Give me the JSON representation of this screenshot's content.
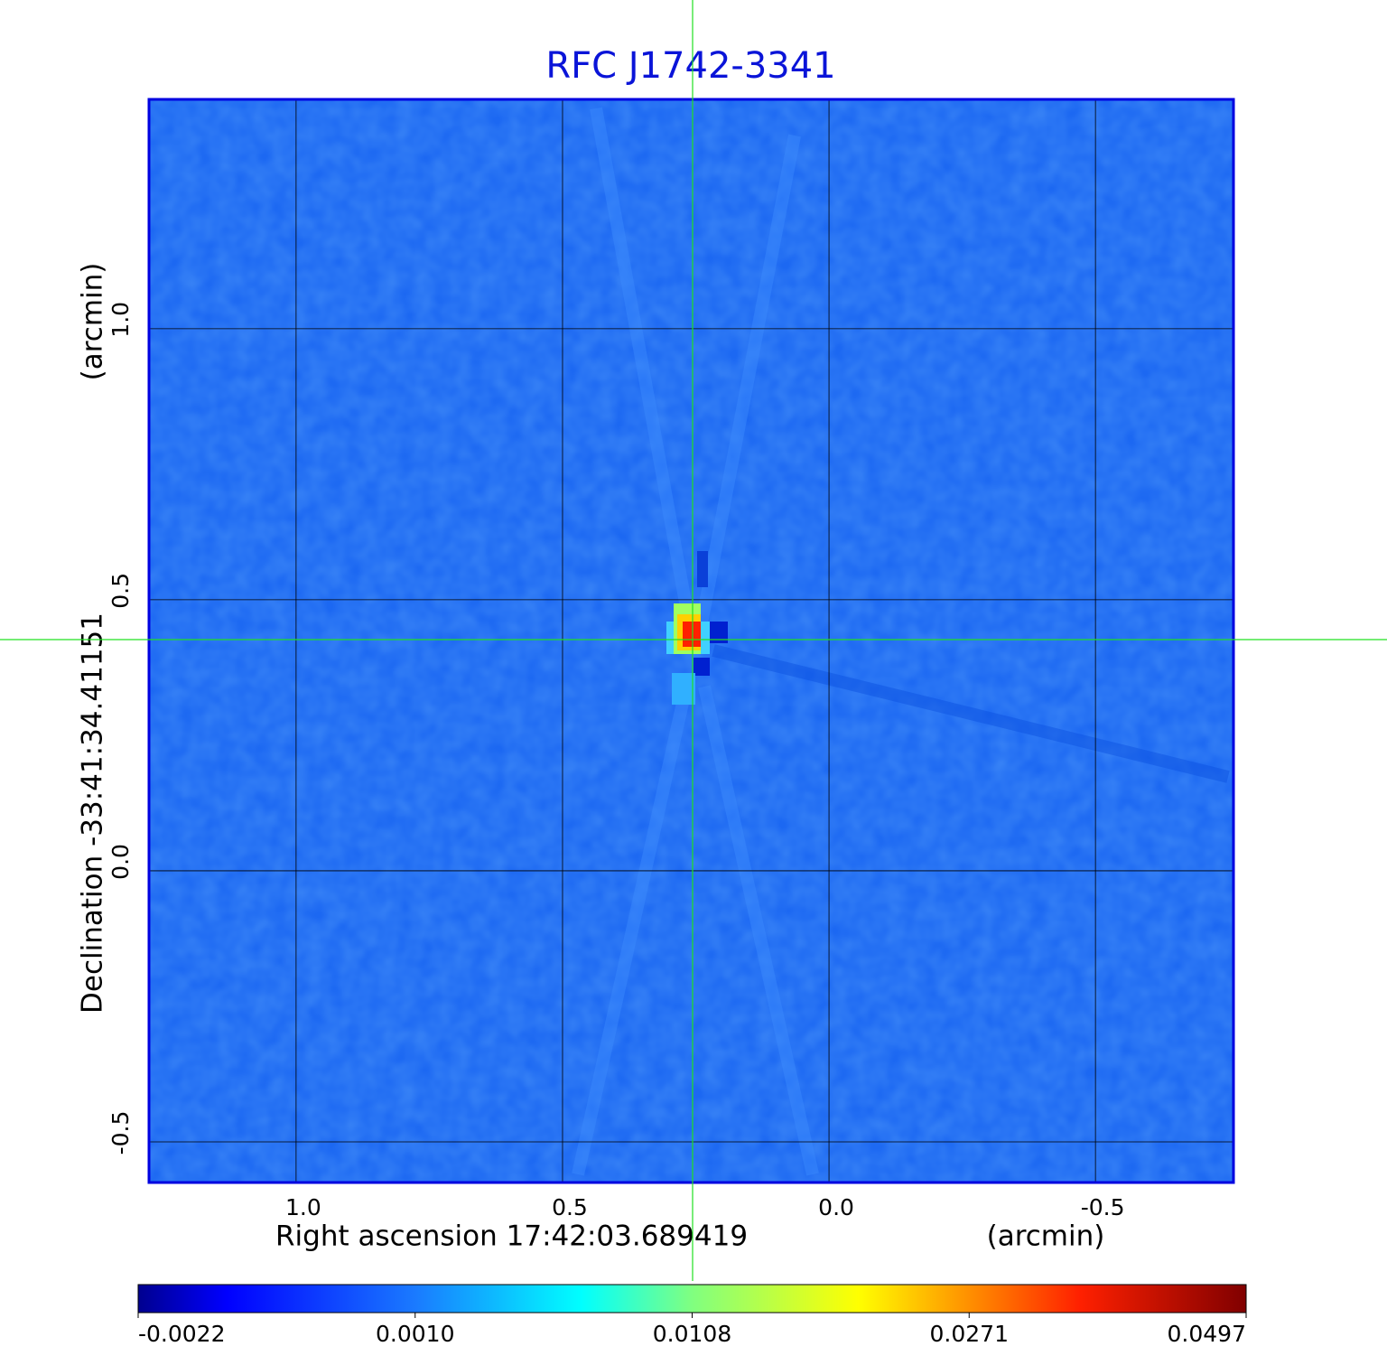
{
  "chart_data": {
    "type": "image",
    "title": "RFC J1742-3341",
    "x_label": "Right ascension  17:42:03.689419",
    "x_unit": "(arcmin)",
    "y_label": "Declination  -33:41:34.41151",
    "y_unit": "(arcmin)",
    "xlim": [
      1.276,
      -0.759
    ],
    "ylim": [
      -0.575,
      1.423
    ],
    "xticks": [
      {
        "value": 1,
        "label": "1.0"
      },
      {
        "value": 0.5,
        "label": "0.5"
      },
      {
        "value": 0,
        "label": "0.0"
      },
      {
        "value": -0.5,
        "label": "-0.5"
      }
    ],
    "yticks": [
      {
        "value": -0.5,
        "label": "-0.5"
      },
      {
        "value": 0,
        "label": "0.0"
      },
      {
        "value": 0.5,
        "label": "0.5"
      },
      {
        "value": 1,
        "label": "1.0"
      }
    ],
    "grid": true,
    "grid_color": "#000000",
    "colorbar": {
      "ticks": [
        -0.0022,
        {
          "value": 0.001,
          "label": "0.0010"
        },
        0.0108,
        0.0271,
        0.0497
      ]
    }
  }
}
